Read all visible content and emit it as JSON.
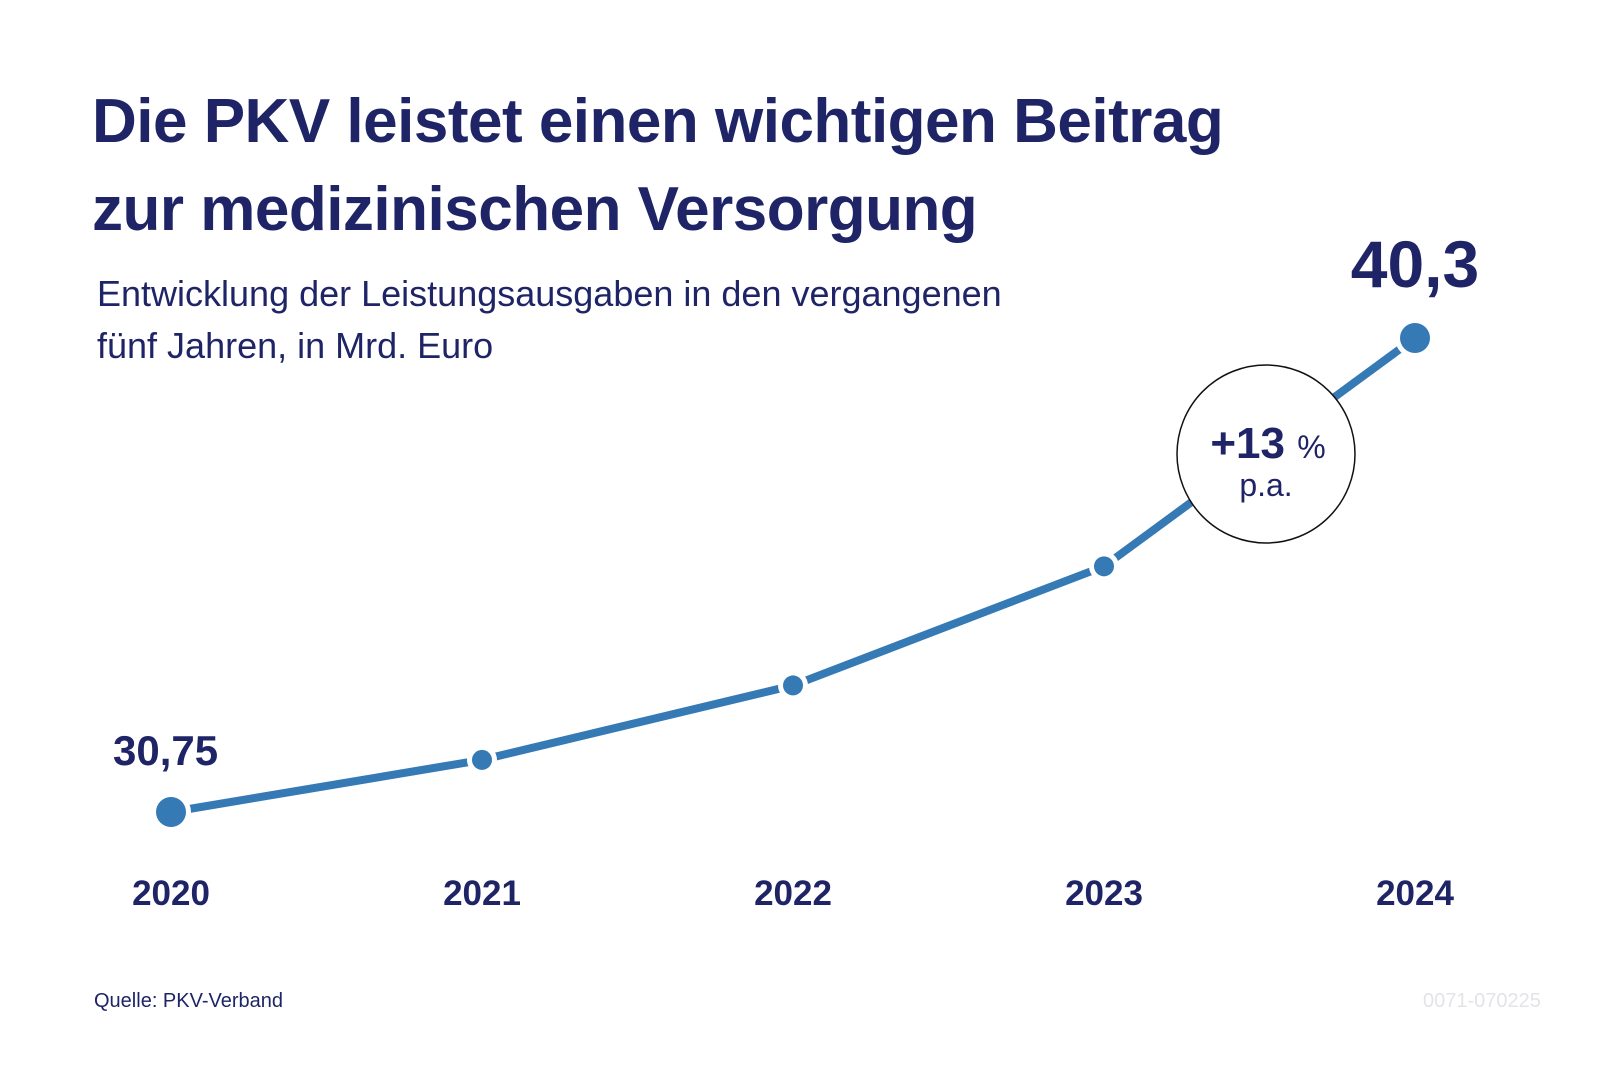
{
  "title_line1": "Die PKV leistet einen wichtigen Beitrag",
  "title_line2": "zur medizinischen Versorgung",
  "subtitle_line1": "Entwicklung der Leistungsausgaben in den vergangenen",
  "subtitle_line2": "fünf Jahren, in Mrd. Euro",
  "source": "Quelle: PKV-Verband",
  "code": "0071-070225",
  "colors": {
    "line": "#3579b5",
    "text": "#1e2466"
  },
  "chart_data": {
    "type": "line",
    "title": "Die PKV leistet einen wichtigen Beitrag zur medizinischen Versorgung",
    "xlabel": "",
    "ylabel": "Mrd. Euro",
    "categories": [
      "2020",
      "2021",
      "2022",
      "2023",
      "2024"
    ],
    "values": [
      30.75,
      31.8,
      33.3,
      35.7,
      40.3
    ],
    "data_labels": {
      "first": "30,75",
      "last": "40,3"
    },
    "annotation": {
      "main": "+13",
      "unit": "%",
      "sub": "p.a."
    },
    "ylim": [
      30.75,
      40.3
    ],
    "grid": false
  }
}
